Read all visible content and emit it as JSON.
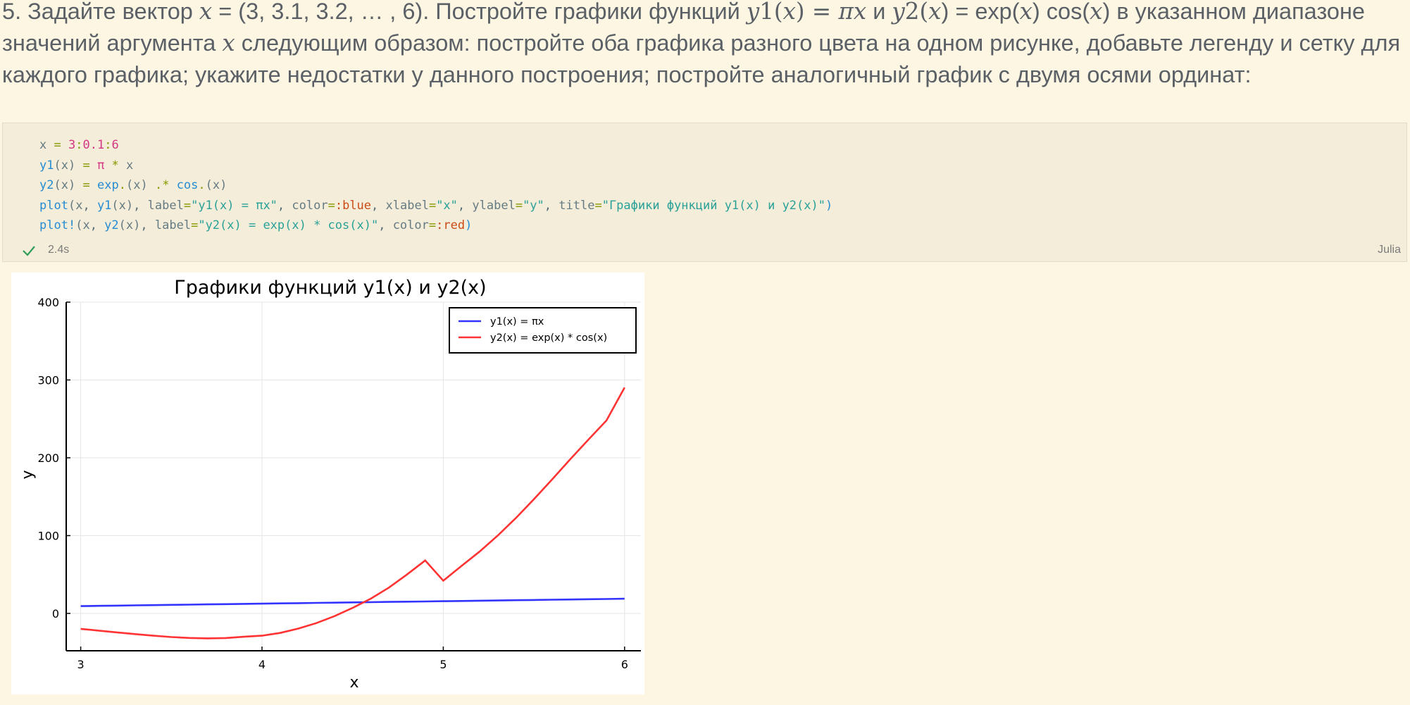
{
  "task": {
    "line1_a": "5. Задайте вектор ",
    "line1_x": "x",
    "line1_b": " = (3, 3.1, 3.2, … , 6). Постройте графики функций ",
    "line1_y1": "y",
    "line1_c": "1(",
    "line1_x2": "x",
    "line1_d": ") = ",
    "line1_pix": "πx",
    "line1_e": " и ",
    "line1_y2": "y",
    "line1_f": "2(",
    "line1_x3": "x",
    "line1_g": ") = exp(",
    "line1_x4": "x",
    "line1_h": ") cos(",
    "line1_x5": "x",
    "line1_i": ") в указанном диапазоне",
    "line2_a": "значений аргумента ",
    "line2_x": "x",
    "line2_b": " следующим образом: постройте оба графика разного цвета на одном рисунке, добавьте легенду и сетку для",
    "line3": "каждого графика; укажите недостатки у данного построения; постройте аналогичный график с двумя осями ординат:"
  },
  "cell": {
    "code_lines": [
      "x = 3:0.1:6",
      "y1(x) = π * x",
      "y2(x) = exp.(x) .* cos.(x)",
      "plot(x, y1(x), label=\"y1(x) = πx\", color=:blue, xlabel=\"x\", ylabel=\"y\", title=\"Графики функций y1(x) и y2(x)\")",
      "plot!(x, y2(x), label=\"y2(x) = exp(x) * cos(x)\", color=:red)"
    ],
    "exec_time": "2.4s",
    "language": "Julia",
    "status_icon": "checkmark-icon"
  },
  "chart_data": {
    "type": "line",
    "title": "Графики функций y1(x) и y2(x)",
    "xlabel": "x",
    "ylabel": "y",
    "xlim": [
      2.92,
      6.09
    ],
    "ylim": [
      -48,
      400
    ],
    "xticks": [
      3,
      4,
      5,
      6
    ],
    "yticks": [
      0,
      100,
      200,
      300,
      400
    ],
    "grid": true,
    "legend_position": "top-right",
    "x": [
      3.0,
      3.1,
      3.2,
      3.3,
      3.4,
      3.5,
      3.6,
      3.7,
      3.8,
      3.9,
      4.0,
      4.1,
      4.2,
      4.3,
      4.4,
      4.5,
      4.6,
      4.7,
      4.8,
      4.9,
      5.0,
      5.1,
      5.2,
      5.3,
      5.4,
      5.5,
      5.6,
      5.7,
      5.8,
      5.9,
      6.0
    ],
    "series": [
      {
        "name": "y1(x) = πx",
        "color": "#3333ff",
        "values": [
          9.42,
          9.74,
          10.05,
          10.37,
          10.68,
          11.0,
          11.31,
          11.62,
          11.94,
          12.25,
          12.57,
          12.88,
          13.19,
          13.51,
          13.82,
          14.14,
          14.45,
          14.77,
          15.08,
          15.39,
          15.71,
          16.02,
          16.34,
          16.65,
          16.96,
          17.28,
          17.59,
          17.91,
          18.22,
          18.54,
          18.85
        ]
      },
      {
        "name": "y2(x) = exp(x) * cos(x)",
        "color": "#ff3333",
        "values": [
          -19.88,
          -22.09,
          -24.34,
          -26.55,
          -28.59,
          -30.31,
          -31.52,
          -32.03,
          -31.61,
          -29.98,
          -28.62,
          -25.11,
          -19.49,
          -12.4,
          -3.43,
          7.09,
          18.96,
          33.18,
          49.98,
          68.05,
          42.09,
          60.99,
          79.4,
          99.98,
          122.5,
          146.76,
          172.19,
          198.05,
          223.26,
          247.91,
          290.25
        ]
      }
    ]
  }
}
